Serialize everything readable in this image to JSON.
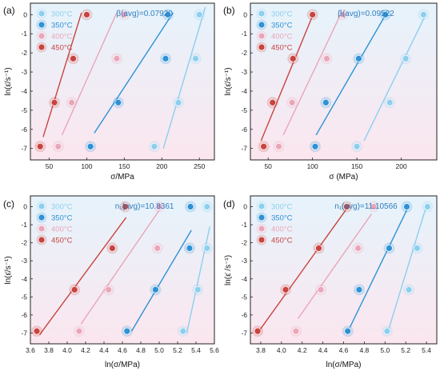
{
  "series_names": [
    "300°C",
    "350°C",
    "400°C",
    "450°C"
  ],
  "colors": {
    "300°C": "#8ccfee",
    "350°C": "#2e92d6",
    "400°C": "#eaa6b9",
    "450°C": "#c9443f",
    "beta_text": "#2f7fc0",
    "background_top": "#e6f3fb",
    "background_bottom": "#fbe6ef"
  },
  "chart_data": [
    {
      "type": "scatter",
      "panel": "(a)",
      "xlabel": "σ/MPa",
      "ylabel": "ln(ε̇/s⁻¹)",
      "annotation": "β(avg)=0.07920",
      "legend_placement": "top-left",
      "xlim": [
        25,
        270
      ],
      "ylim": [
        -7.6,
        0.6
      ],
      "xticks": [
        "50",
        "100",
        "150",
        "200",
        "250"
      ],
      "yticks": [
        "0",
        "-1",
        "-2",
        "-3",
        "-4",
        "-5",
        "-6",
        "-7"
      ],
      "series": [
        {
          "name": "300°C",
          "points": [
            [
              190,
              -6.9
            ],
            [
              222,
              -4.6
            ],
            [
              245,
              -2.3
            ],
            [
              250,
              0
            ]
          ],
          "fit": [
            [
              202,
              -7.0
            ],
            [
              258,
              0.4
            ]
          ]
        },
        {
          "name": "350°C",
          "points": [
            [
              105,
              -6.9
            ],
            [
              142,
              -4.6
            ],
            [
              205,
              -2.3
            ],
            [
              208,
              0
            ]
          ],
          "fit": [
            [
              110,
              -6.2
            ],
            [
              215,
              0.1
            ]
          ]
        },
        {
          "name": "400°C",
          "points": [
            [
              62,
              -6.9
            ],
            [
              80,
              -4.6
            ],
            [
              140,
              -2.3
            ],
            [
              150,
              0
            ]
          ],
          "fit": [
            [
              67,
              -6.3
            ],
            [
              140,
              0.1
            ]
          ]
        },
        {
          "name": "450°C",
          "points": [
            [
              38,
              -6.9
            ],
            [
              57,
              -4.6
            ],
            [
              82,
              -2.3
            ],
            [
              100,
              0
            ]
          ],
          "fit": [
            [
              42,
              -6.4
            ],
            [
              93,
              0.1
            ]
          ]
        }
      ]
    },
    {
      "type": "scatter",
      "panel": "(b)",
      "xlabel": "σ (MPa)",
      "ylabel": "ln(ε̇/s⁻¹)",
      "annotation": "β(avg)=0.09522",
      "legend_placement": "top-left",
      "xlim": [
        30,
        240
      ],
      "ylim": [
        -7.6,
        0.6
      ],
      "xticks": [
        "50",
        "100",
        "150",
        "200"
      ],
      "yticks": [
        "0",
        "-1",
        "-2",
        "-3",
        "-4",
        "-5",
        "-6",
        "-7"
      ],
      "series": [
        {
          "name": "300°C",
          "points": [
            [
              150,
              -6.9
            ],
            [
              187,
              -4.6
            ],
            [
              205,
              -2.3
            ],
            [
              225,
              0
            ]
          ],
          "fit": [
            [
              158,
              -6.6
            ],
            [
              228,
              0.05
            ]
          ]
        },
        {
          "name": "350°C",
          "points": [
            [
              103,
              -6.9
            ],
            [
              115,
              -4.6
            ],
            [
              152,
              -2.3
            ],
            [
              182,
              0
            ]
          ],
          "fit": [
            [
              104,
              -6.3
            ],
            [
              183,
              0.05
            ]
          ]
        },
        {
          "name": "400°C",
          "points": [
            [
              62,
              -6.9
            ],
            [
              77,
              -4.6
            ],
            [
              116,
              -2.3
            ],
            [
              134,
              0
            ]
          ],
          "fit": [
            [
              67,
              -6.3
            ],
            [
              132,
              0.05
            ]
          ]
        },
        {
          "name": "450°C",
          "points": [
            [
              45,
              -6.9
            ],
            [
              55,
              -4.6
            ],
            [
              78,
              -2.3
            ],
            [
              100,
              0
            ]
          ],
          "fit": [
            [
              42,
              -6.6
            ],
            [
              101,
              0.05
            ]
          ]
        }
      ]
    },
    {
      "type": "scatter",
      "panel": "(c)",
      "xlabel": "ln(σ/MPa)",
      "ylabel": "ln(ε̇/s⁻¹)",
      "annotation": "n₁(avg)=10.8361",
      "legend_placement": "top-left",
      "xlim": [
        3.6,
        5.6
      ],
      "ylim": [
        -7.6,
        0.6
      ],
      "xticks": [
        "3.6",
        "3.8",
        "4.0",
        "4.2",
        "4.4",
        "4.6",
        "4.8",
        "5.0",
        "5.2",
        "5.4",
        "5.6"
      ],
      "yticks": [
        "0",
        "-1",
        "-2",
        "-3",
        "-4",
        "-5",
        "-6",
        "-7"
      ],
      "series": [
        {
          "name": "300°C",
          "points": [
            [
              5.26,
              -6.9
            ],
            [
              5.42,
              -4.6
            ],
            [
              5.52,
              -2.3
            ],
            [
              5.52,
              0
            ]
          ],
          "fit": [
            [
              5.3,
              -7.0
            ],
            [
              5.55,
              -1.1
            ]
          ]
        },
        {
          "name": "350°C",
          "points": [
            [
              4.65,
              -6.9
            ],
            [
              4.96,
              -4.6
            ],
            [
              5.33,
              -2.3
            ],
            [
              5.34,
              0
            ]
          ],
          "fit": [
            [
              4.7,
              -6.9
            ],
            [
              5.35,
              -1.3
            ]
          ]
        },
        {
          "name": "400°C",
          "points": [
            [
              4.13,
              -6.9
            ],
            [
              4.45,
              -4.6
            ],
            [
              4.98,
              -2.3
            ],
            [
              5.0,
              0
            ]
          ],
          "fit": [
            [
              4.15,
              -6.5
            ],
            [
              5.0,
              -0.2
            ]
          ]
        },
        {
          "name": "450°C",
          "points": [
            [
              3.67,
              -6.9
            ],
            [
              4.08,
              -4.6
            ],
            [
              4.49,
              -2.3
            ],
            [
              4.63,
              0
            ]
          ],
          "fit": [
            [
              3.7,
              -7.1
            ],
            [
              4.64,
              -0.6
            ]
          ]
        }
      ]
    },
    {
      "type": "scatter",
      "panel": "(d)",
      "xlabel": "ln(σ/MPa)",
      "ylabel": "ln(ε̇ /s⁻¹)",
      "annotation": "n₁(avg)=11.10566",
      "legend_placement": "top-left",
      "xlim": [
        3.7,
        5.5
      ],
      "ylim": [
        -7.6,
        0.6
      ],
      "xticks": [
        "3.8",
        "4.0",
        "4.2",
        "4.4",
        "4.6",
        "4.8",
        "5.0",
        "5.2",
        "5.4"
      ],
      "yticks": [
        "0",
        "-1",
        "-2",
        "-3",
        "-4",
        "-5",
        "-6",
        "-7"
      ],
      "series": [
        {
          "name": "300°C",
          "points": [
            [
              5.02,
              -6.9
            ],
            [
              5.23,
              -4.6
            ],
            [
              5.31,
              -2.3
            ],
            [
              5.41,
              0
            ]
          ],
          "fit": [
            [
              5.03,
              -6.9
            ],
            [
              5.4,
              0.05
            ]
          ]
        },
        {
          "name": "350°C",
          "points": [
            [
              4.64,
              -6.9
            ],
            [
              4.75,
              -4.6
            ],
            [
              5.04,
              -2.3
            ],
            [
              5.21,
              0
            ]
          ],
          "fit": [
            [
              4.66,
              -6.7
            ],
            [
              5.23,
              0.05
            ]
          ]
        },
        {
          "name": "400°C",
          "points": [
            [
              4.14,
              -6.9
            ],
            [
              4.38,
              -4.6
            ],
            [
              4.74,
              -2.3
            ],
            [
              4.89,
              0
            ]
          ],
          "fit": [
            [
              4.16,
              -6.2
            ],
            [
              4.87,
              -0.4
            ]
          ]
        },
        {
          "name": "450°C",
          "points": [
            [
              3.77,
              -6.9
            ],
            [
              4.04,
              -4.6
            ],
            [
              4.36,
              -2.3
            ],
            [
              4.63,
              0
            ]
          ],
          "fit": [
            [
              3.77,
              -7.0
            ],
            [
              4.65,
              0.05
            ]
          ]
        }
      ]
    }
  ]
}
